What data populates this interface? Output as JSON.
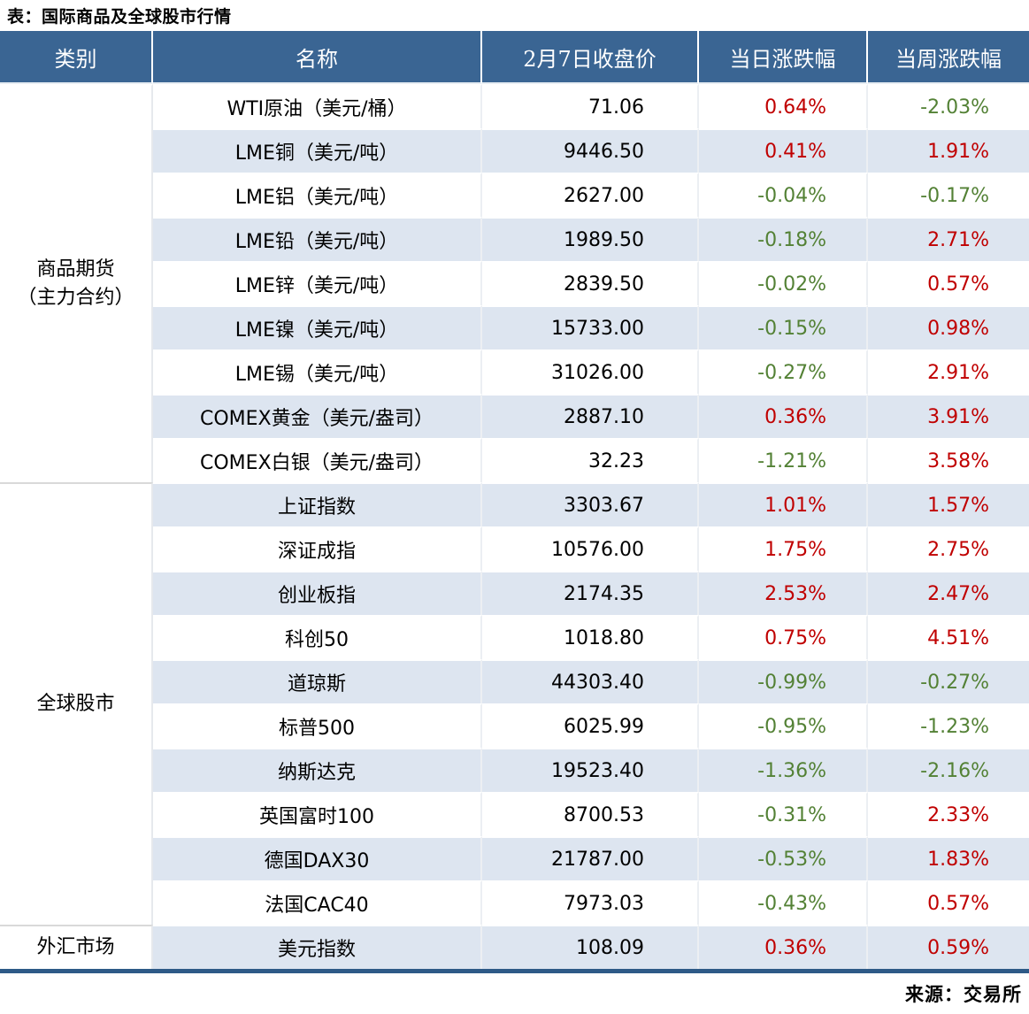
{
  "title": "表：国际商品及全球股市行情",
  "source": "来源：交易所",
  "chart_data": {
    "type": "table",
    "columns": [
      "类别",
      "名称",
      "2月7日收盘价",
      "当日涨跌幅",
      "当周涨跌幅"
    ],
    "sections": [
      {
        "category": "商品期货\n（主力合约）",
        "rows": [
          {
            "name": "WTI原油（美元/桶）",
            "close": "71.06",
            "day_chg": "0.64%",
            "week_chg": "-2.03%"
          },
          {
            "name": "LME铜（美元/吨）",
            "close": "9446.50",
            "day_chg": "0.41%",
            "week_chg": "1.91%"
          },
          {
            "name": "LME铝（美元/吨）",
            "close": "2627.00",
            "day_chg": "-0.04%",
            "week_chg": "-0.17%"
          },
          {
            "name": "LME铅（美元/吨）",
            "close": "1989.50",
            "day_chg": "-0.18%",
            "week_chg": "2.71%"
          },
          {
            "name": "LME锌（美元/吨）",
            "close": "2839.50",
            "day_chg": "-0.02%",
            "week_chg": "0.57%"
          },
          {
            "name": "LME镍（美元/吨）",
            "close": "15733.00",
            "day_chg": "-0.15%",
            "week_chg": "0.98%"
          },
          {
            "name": "LME锡（美元/吨）",
            "close": "31026.00",
            "day_chg": "-0.27%",
            "week_chg": "2.91%"
          },
          {
            "name": "COMEX黄金（美元/盎司）",
            "close": "2887.10",
            "day_chg": "0.36%",
            "week_chg": "3.91%"
          },
          {
            "name": "COMEX白银（美元/盎司）",
            "close": "32.23",
            "day_chg": "-1.21%",
            "week_chg": "3.58%"
          }
        ]
      },
      {
        "category": "全球股市",
        "rows": [
          {
            "name": "上证指数",
            "close": "3303.67",
            "day_chg": "1.01%",
            "week_chg": "1.57%"
          },
          {
            "name": "深证成指",
            "close": "10576.00",
            "day_chg": "1.75%",
            "week_chg": "2.75%"
          },
          {
            "name": "创业板指",
            "close": "2174.35",
            "day_chg": "2.53%",
            "week_chg": "2.47%"
          },
          {
            "name": "科创50",
            "close": "1018.80",
            "day_chg": "0.75%",
            "week_chg": "4.51%"
          },
          {
            "name": "道琼斯",
            "close": "44303.40",
            "day_chg": "-0.99%",
            "week_chg": "-0.27%"
          },
          {
            "name": "标普500",
            "close": "6025.99",
            "day_chg": "-0.95%",
            "week_chg": "-1.23%"
          },
          {
            "name": "纳斯达克",
            "close": "19523.40",
            "day_chg": "-1.36%",
            "week_chg": "-2.16%"
          },
          {
            "name": "英国富时100",
            "close": "8700.53",
            "day_chg": "-0.31%",
            "week_chg": "2.33%"
          },
          {
            "name": "德国DAX30",
            "close": "21787.00",
            "day_chg": "-0.53%",
            "week_chg": "1.83%"
          },
          {
            "name": "法国CAC40",
            "close": "7973.03",
            "day_chg": "-0.43%",
            "week_chg": "0.57%"
          }
        ]
      },
      {
        "category": "外汇市场",
        "rows": [
          {
            "name": "美元指数",
            "close": "108.09",
            "day_chg": "0.36%",
            "week_chg": "0.59%"
          }
        ]
      }
    ],
    "colors": {
      "header_bg": "#3A6593",
      "row_alt_bg": "#DDE5F0",
      "up": "#C00000",
      "down": "#538135",
      "bottom_border": "#2E5A87"
    },
    "layout": {
      "legend": "red = rise, green = fall",
      "column_align": [
        "center",
        "center",
        "right",
        "right",
        "right"
      ]
    }
  }
}
